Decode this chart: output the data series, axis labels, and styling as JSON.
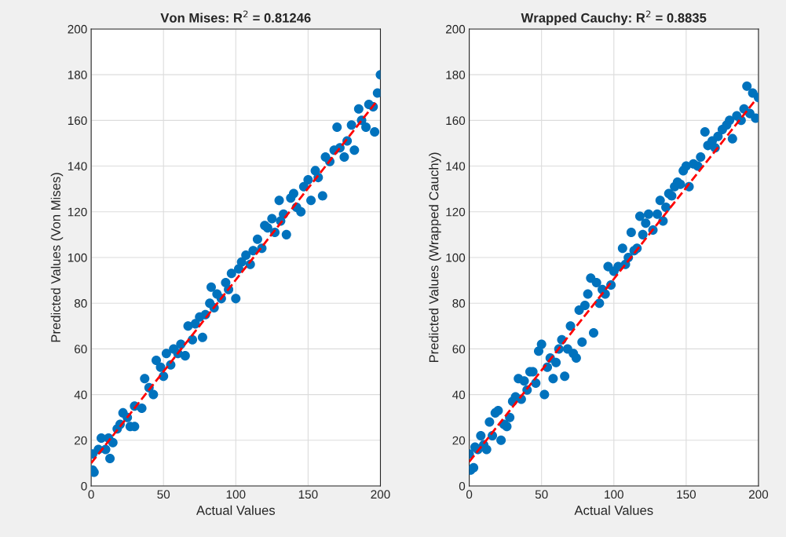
{
  "chart_data": [
    {
      "type": "scatter",
      "title": "Von Mises: R$^{2}$ = 0.81246",
      "xlabel": "Actual Values",
      "ylabel": "Predicted Values (Von Mises)",
      "xlim": [
        0,
        200
      ],
      "ylim": [
        0,
        200
      ],
      "xticks": [
        0,
        50,
        100,
        150,
        200
      ],
      "yticks": [
        0,
        20,
        40,
        60,
        80,
        100,
        120,
        140,
        160,
        180,
        200
      ],
      "grid": true,
      "marker": "circle",
      "series": [
        {
          "type": "scatter",
          "color": "#0072bd",
          "x": [
            1,
            1,
            2,
            5,
            7,
            10,
            12,
            13,
            15,
            18,
            20,
            22,
            25,
            27,
            30,
            30,
            35,
            37,
            40,
            43,
            45,
            48,
            50,
            52,
            55,
            57,
            60,
            62,
            65,
            67,
            70,
            72,
            75,
            77,
            79,
            82,
            83,
            85,
            87,
            90,
            93,
            95,
            97,
            100,
            102,
            104,
            107,
            110,
            112,
            115,
            118,
            120,
            122,
            125,
            127,
            130,
            131,
            133,
            135,
            138,
            140,
            142,
            145,
            147,
            150,
            152,
            155,
            157,
            160,
            162,
            165,
            168,
            170,
            172,
            175,
            177,
            180,
            182,
            185,
            187,
            190,
            192,
            195,
            196,
            198,
            200
          ],
          "values": [
            14,
            7,
            6,
            16,
            21,
            16,
            21,
            12,
            19,
            25,
            27,
            32,
            30,
            26,
            26,
            35,
            34,
            47,
            43,
            40,
            55,
            52,
            48,
            58,
            53,
            60,
            58,
            62,
            57,
            70,
            64,
            71,
            74,
            65,
            75,
            80,
            87,
            78,
            84,
            82,
            89,
            86,
            93,
            82,
            95,
            98,
            101,
            97,
            103,
            108,
            104,
            114,
            113,
            117,
            111,
            125,
            116,
            119,
            110,
            126,
            128,
            122,
            120,
            131,
            134,
            125,
            138,
            135,
            127,
            144,
            142,
            147,
            157,
            148,
            144,
            151,
            158,
            147,
            165,
            160,
            157,
            167,
            166,
            155,
            172,
            180
          ]
        },
        {
          "type": "line",
          "color": "#ff0000",
          "line_style": "dashed",
          "marker": "none",
          "x": [
            0,
            197
          ],
          "values": [
            10,
            168
          ]
        }
      ]
    },
    {
      "type": "scatter",
      "title": "Wrapped Cauchy: R$^{2}$ = 0.8835",
      "xlabel": "Actual Values",
      "ylabel": "Predicted Values (Wrapped Cauchy)",
      "xlim": [
        0,
        200
      ],
      "ylim": [
        0,
        200
      ],
      "xticks": [
        0,
        50,
        100,
        150,
        200
      ],
      "yticks": [
        0,
        20,
        40,
        60,
        80,
        100,
        120,
        140,
        160,
        180,
        200
      ],
      "grid": true,
      "marker": "circle",
      "series": [
        {
          "type": "scatter",
          "color": "#0072bd",
          "x": [
            0,
            1,
            3,
            4,
            6,
            8,
            10,
            12,
            14,
            16,
            18,
            20,
            22,
            24,
            26,
            28,
            30,
            32,
            34,
            36,
            38,
            40,
            42,
            44,
            46,
            48,
            50,
            52,
            54,
            56,
            58,
            60,
            62,
            64,
            66,
            68,
            70,
            72,
            74,
            76,
            78,
            80,
            82,
            84,
            86,
            88,
            90,
            92,
            94,
            96,
            98,
            100,
            103,
            106,
            108,
            110,
            112,
            114,
            116,
            118,
            120,
            122,
            124,
            127,
            130,
            132,
            134,
            136,
            138,
            140,
            142,
            144,
            146,
            148,
            150,
            152,
            155,
            158,
            160,
            163,
            165,
            168,
            170,
            172,
            175,
            178,
            180,
            182,
            185,
            188,
            190,
            192,
            194,
            196,
            198,
            200
          ],
          "values": [
            14,
            7,
            8,
            17,
            16,
            22,
            18,
            16,
            28,
            22,
            32,
            33,
            20,
            27,
            26,
            30,
            37,
            39,
            47,
            38,
            46,
            42,
            50,
            50,
            45,
            59,
            62,
            40,
            52,
            56,
            47,
            54,
            60,
            64,
            48,
            60,
            70,
            58,
            56,
            77,
            63,
            79,
            84,
            91,
            67,
            89,
            80,
            86,
            84,
            96,
            88,
            94,
            96,
            104,
            97,
            100,
            111,
            103,
            104,
            118,
            110,
            115,
            119,
            112,
            119,
            125,
            116,
            122,
            128,
            127,
            131,
            133,
            132,
            138,
            140,
            131,
            141,
            140,
            144,
            155,
            149,
            151,
            148,
            153,
            156,
            158,
            160,
            152,
            162,
            160,
            165,
            175,
            163,
            172,
            161,
            170
          ]
        },
        {
          "type": "line",
          "color": "#ff0000",
          "line_style": "dashed",
          "marker": "none",
          "x": [
            0,
            198
          ],
          "values": [
            10.6,
            169
          ]
        }
      ]
    }
  ]
}
